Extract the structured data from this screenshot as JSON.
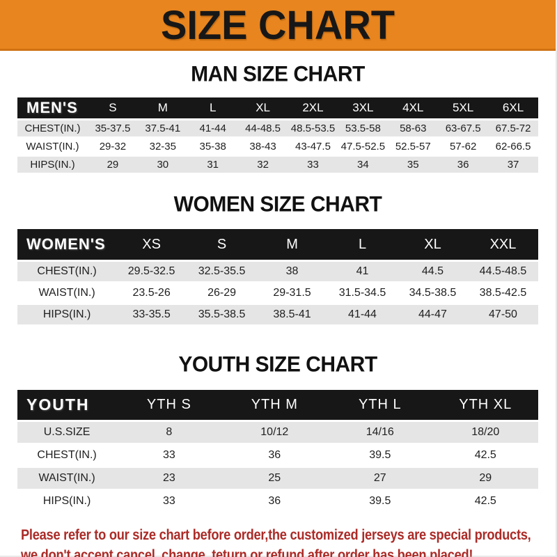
{
  "banner": {
    "title": "SIZE CHART"
  },
  "colors": {
    "banner_bg": "#E8851E",
    "banner_text": "#171717",
    "header_bg": "#171717",
    "header_text": "#FFFFFF",
    "row_alt_bg": "#E5E5E5",
    "cell_text": "#1E1E1E",
    "disclaimer_text": "#AB2B27"
  },
  "sections": [
    {
      "kind": "men",
      "heading": "MAN SIZE CHART",
      "header_label": "MEN'S",
      "columns": [
        "S",
        "M",
        "L",
        "XL",
        "2XL",
        "3XL",
        "4XL",
        "5XL",
        "6XL"
      ],
      "rows": [
        {
          "label": "CHEST(IN.)",
          "values": [
            "35-37.5",
            "37.5-41",
            "41-44",
            "44-48.5",
            "48.5-53.5",
            "53.5-58",
            "58-63",
            "63-67.5",
            "67.5-72"
          ]
        },
        {
          "label": "WAIST(IN.)",
          "values": [
            "29-32",
            "32-35",
            "35-38",
            "38-43",
            "43-47.5",
            "47.5-52.5",
            "52.5-57",
            "57-62",
            "62-66.5"
          ]
        },
        {
          "label": "HIPS(IN.)",
          "values": [
            "29",
            "30",
            "31",
            "32",
            "33",
            "34",
            "35",
            "36",
            "37"
          ]
        }
      ]
    },
    {
      "kind": "women",
      "heading": "WOMEN SIZE CHART",
      "header_label": "WOMEN'S",
      "columns": [
        "XS",
        "S",
        "M",
        "L",
        "XL",
        "XXL"
      ],
      "rows": [
        {
          "label": "CHEST(IN.)",
          "values": [
            "29.5-32.5",
            "32.5-35.5",
            "38",
            "41",
            "44.5",
            "44.5-48.5"
          ]
        },
        {
          "label": "WAIST(IN.)",
          "values": [
            "23.5-26",
            "26-29",
            "29-31.5",
            "31.5-34.5",
            "34.5-38.5",
            "38.5-42.5"
          ]
        },
        {
          "label": "HIPS(IN.)",
          "values": [
            "33-35.5",
            "35.5-38.5",
            "38.5-41",
            "41-44",
            "44-47",
            "47-50"
          ]
        }
      ]
    },
    {
      "kind": "youth",
      "heading": "YOUTH SIZE CHART",
      "header_label": "YOUTH",
      "columns": [
        "YTH S",
        "YTH M",
        "YTH L",
        "YTH XL"
      ],
      "rows": [
        {
          "label": "U.S.SIZE",
          "values": [
            "8",
            "10/12",
            "14/16",
            "18/20"
          ]
        },
        {
          "label": "CHEST(IN.)",
          "values": [
            "33",
            "36",
            "39.5",
            "42.5"
          ]
        },
        {
          "label": "WAIST(IN.)",
          "values": [
            "23",
            "25",
            "27",
            "29"
          ]
        },
        {
          "label": "HIPS(IN.)",
          "values": [
            "33",
            "36",
            "39.5",
            "42.5"
          ]
        }
      ]
    }
  ],
  "disclaimer": {
    "lines": [
      "Please refer to our size chart before order,the customized jerseys are special products,",
      "we don't accept cancel, change, teturn or refund after order has been placed!"
    ]
  }
}
